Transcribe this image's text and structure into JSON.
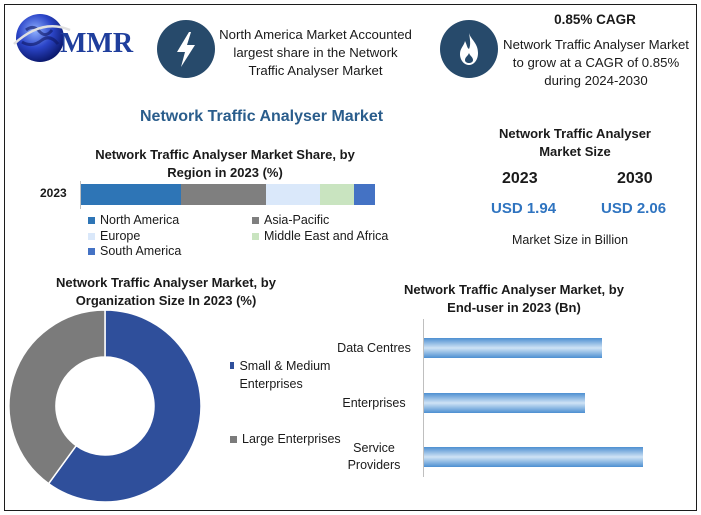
{
  "logo": {
    "text": "MMR"
  },
  "header": {
    "highlight_text": "North America Market Accounted largest share in the Network Traffic Analyser Market",
    "cagr_title": "0.85% CAGR",
    "cagr_text": "Network Traffic Analyser Market to grow at a CAGR of 0.85% during 2024-2030"
  },
  "main_title": "Network Traffic Analyser Market",
  "market_size": {
    "title": "Network Traffic Analyser Market Size",
    "year1": "2023",
    "year2": "2030",
    "value1": "USD 1.94",
    "value2": "USD 2.06",
    "unit_note": "Market Size in Billion"
  },
  "chart_data": [
    {
      "type": "bar",
      "title": "Network Traffic Analyser Market Share, by Region in 2023 (%)",
      "orientation": "horizontal-stacked",
      "categories": [
        "2023"
      ],
      "series": [
        {
          "name": "North America",
          "values": [
            33
          ],
          "color": "#2e75b6"
        },
        {
          "name": "Asia-Pacific",
          "values": [
            28
          ],
          "color": "#7f7f7f"
        },
        {
          "name": "Europe",
          "values": [
            18
          ],
          "color": "#dae8fa"
        },
        {
          "name": "Middle East and Africa",
          "values": [
            11
          ],
          "color": "#c9e4c0"
        },
        {
          "name": "South America",
          "values": [
            7
          ],
          "color": "#4472c4"
        }
      ],
      "legend": "bottom"
    },
    {
      "type": "pie",
      "title": "Network Traffic Analyser Market, by Organization Size In 2023 (%)",
      "style": "donut",
      "series": [
        {
          "name": "Small & Medium Enterprises",
          "values": [
            60
          ],
          "color": "#2f4f9b"
        },
        {
          "name": "Large Enterprises",
          "values": [
            40
          ],
          "color": "#7b7b7b"
        }
      ],
      "legend": "right"
    },
    {
      "type": "bar",
      "title": "Network Traffic Analyser Market, by End-user in 2023 (Bn)",
      "orientation": "horizontal",
      "categories": [
        "Data Centres",
        "Enterprises",
        "Service Providers"
      ],
      "values": [
        0.65,
        0.59,
        0.8
      ],
      "xlim": [
        0,
        0.95
      ],
      "color": "#4d8fd1"
    }
  ]
}
